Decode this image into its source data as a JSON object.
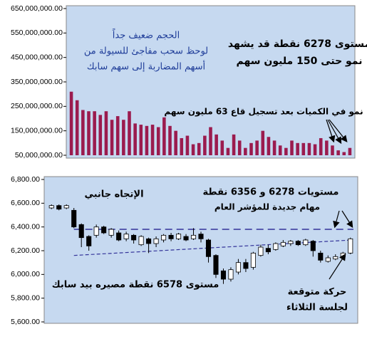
{
  "chart_data": [
    {
      "type": "bar",
      "color": "#9b1b4e",
      "values": [
        310000000,
        275000000,
        235000000,
        230000000,
        230000000,
        215000000,
        230000000,
        195000000,
        210000000,
        195000000,
        230000000,
        180000000,
        175000000,
        170000000,
        175000000,
        165000000,
        205000000,
        170000000,
        150000000,
        120000000,
        130000000,
        95000000,
        100000000,
        130000000,
        165000000,
        135000000,
        110000000,
        80000000,
        135000000,
        110000000,
        80000000,
        100000000,
        110000000,
        150000000,
        125000000,
        110000000,
        90000000,
        80000000,
        110000000,
        100000000,
        100000000,
        100000000,
        95000000,
        120000000,
        110000000,
        90000000,
        70000000,
        63000000,
        80000000
      ],
      "ylim": [
        50000000,
        650000000
      ],
      "yticks": [
        {
          "value": 50000000,
          "label": "50,000,000.00"
        },
        {
          "value": 150000000,
          "label": "150,000,000.00"
        },
        {
          "value": 250000000,
          "label": "250,000,000.00"
        },
        {
          "value": 350000000,
          "label": "350,000,000.00"
        },
        {
          "value": 450000000,
          "label": "450,000,000.00"
        },
        {
          "value": 550000000,
          "label": "550,000,000.00"
        },
        {
          "value": 650000000,
          "label": "650,000,000.00"
        }
      ],
      "annotations": [
        "الحجم ضعيف جداً",
        "لوحظ سحب مفاجئ للسيولة من",
        "أسهم المضاربة إلى سهم سابك",
        "مستوى 6278 نقطة قد يشهد",
        "نمو حتى 150 مليون سهم",
        "نمو في الكميات بعد تسجيل قاع 63 مليون سهم"
      ]
    },
    {
      "type": "candlestick",
      "open": [
        6560,
        6580,
        6560,
        6540,
        6420,
        6320,
        6330,
        6400,
        6330,
        6350,
        6300,
        6330,
        6250,
        6300,
        6260,
        6290,
        6330,
        6300,
        6320,
        6300,
        6340,
        6290,
        6160,
        6030,
        5960,
        6020,
        6100,
        6060,
        6160,
        6220,
        6210,
        6240,
        6260,
        6280,
        6250,
        6280,
        6180,
        6110,
        6130,
        6150,
        6180
      ],
      "high": [
        6590,
        6590,
        6590,
        6560,
        6430,
        6330,
        6420,
        6410,
        6390,
        6370,
        6360,
        6340,
        6330,
        6310,
        6320,
        6340,
        6350,
        6350,
        6340,
        6390,
        6360,
        6300,
        6170,
        6050,
        6060,
        6130,
        6130,
        6190,
        6250,
        6250,
        6270,
        6290,
        6290,
        6290,
        6300,
        6290,
        6200,
        6160,
        6170,
        6190,
        6310
      ],
      "low": [
        6550,
        6540,
        6550,
        6390,
        6230,
        6200,
        6310,
        6340,
        6310,
        6280,
        6280,
        6260,
        6240,
        6180,
        6230,
        6270,
        6280,
        6290,
        6280,
        6290,
        6270,
        6100,
        5970,
        5920,
        5940,
        6000,
        6020,
        6040,
        6150,
        6170,
        6200,
        6230,
        6240,
        6240,
        6240,
        6150,
        6100,
        6100,
        6120,
        6140,
        6170
      ],
      "close": [
        6580,
        6550,
        6580,
        6400,
        6310,
        6240,
        6400,
        6350,
        6380,
        6290,
        6340,
        6290,
        6320,
        6260,
        6300,
        6330,
        6300,
        6340,
        6290,
        6330,
        6300,
        6150,
        6000,
        5960,
        6040,
        6100,
        6050,
        6180,
        6230,
        6190,
        6260,
        6270,
        6280,
        6250,
        6290,
        6200,
        6120,
        6140,
        6150,
        6180,
        6300
      ],
      "ylim": [
        5600,
        6800
      ],
      "yticks": [
        {
          "value": 5600,
          "label": "5,600.00"
        },
        {
          "value": 5800,
          "label": "5,800.00"
        },
        {
          "value": 6000,
          "label": "6,000.00"
        },
        {
          "value": 6200,
          "label": "6,200.00"
        },
        {
          "value": 6400,
          "label": "6,400.00"
        },
        {
          "value": 6600,
          "label": "6,600.00"
        },
        {
          "value": 6800,
          "label": "6,800.00"
        }
      ],
      "hline": 6380,
      "hline_color": "#333399",
      "trend": {
        "start": 6160,
        "end": 6290
      },
      "trend_color": "#333399",
      "annotations": [
        "الإتجاه جانبي",
        "مستويات 6278 و 6356 نقطة",
        "مهام جديدة للمؤشر العام",
        "مستوى 6578 نقطة مصيره بيد سابك",
        "حركة متوقعة",
        "لجلسة الثلاثاء"
      ]
    }
  ]
}
